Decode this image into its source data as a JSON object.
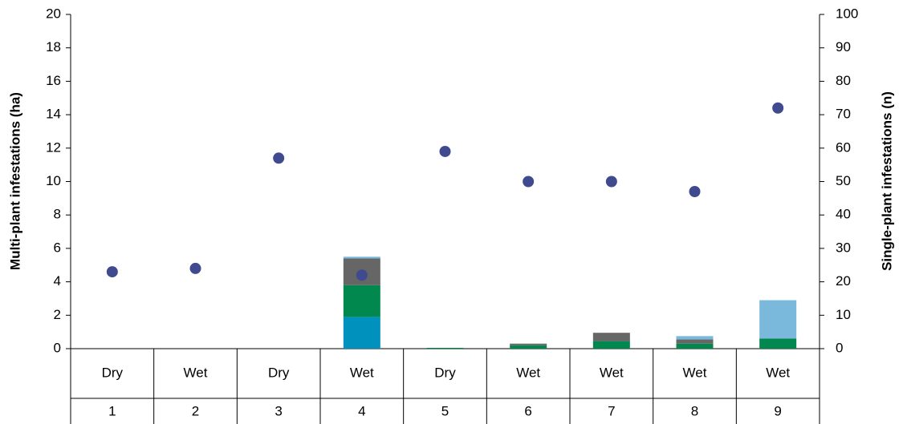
{
  "chart_data": {
    "type": "bar",
    "stacked": true,
    "categories": [
      "Dry",
      "Wet",
      "Dry",
      "Wet",
      "Dry",
      "Wet",
      "Wet",
      "Wet",
      "Wet"
    ],
    "category_numbers": [
      "1",
      "2",
      "3",
      "4",
      "5",
      "6",
      "7",
      "8",
      "9"
    ],
    "ylabel": "Multi-plant infestations (ha)",
    "y2label": "Single-plant infestations (n)",
    "ylim": [
      0,
      20
    ],
    "yticks": [
      0,
      2,
      4,
      6,
      8,
      10,
      12,
      14,
      16,
      18,
      20
    ],
    "y2lim": [
      0,
      100
    ],
    "y2ticks": [
      0,
      10,
      20,
      30,
      40,
      50,
      60,
      70,
      80,
      90,
      100
    ],
    "series": [
      {
        "color": "#0092bc",
        "values": [
          0,
          0,
          0,
          1.9,
          0,
          0,
          0,
          0,
          0
        ]
      },
      {
        "color": "#00884f",
        "values": [
          0,
          0,
          0,
          1.9,
          0.05,
          0.2,
          0.45,
          0.3,
          0.6
        ]
      },
      {
        "color": "#666666",
        "values": [
          0,
          0,
          0,
          1.6,
          0,
          0.1,
          0.5,
          0.25,
          0
        ]
      },
      {
        "color": "#7ab8dc",
        "values": [
          0,
          0,
          0,
          0.1,
          0,
          0,
          0,
          0.2,
          2.3
        ]
      },
      {
        "type": "scatter",
        "axis": "y2",
        "color": "#3f4a8f",
        "values": [
          23,
          24,
          57,
          22,
          59,
          50,
          50,
          47,
          72
        ]
      }
    ]
  }
}
